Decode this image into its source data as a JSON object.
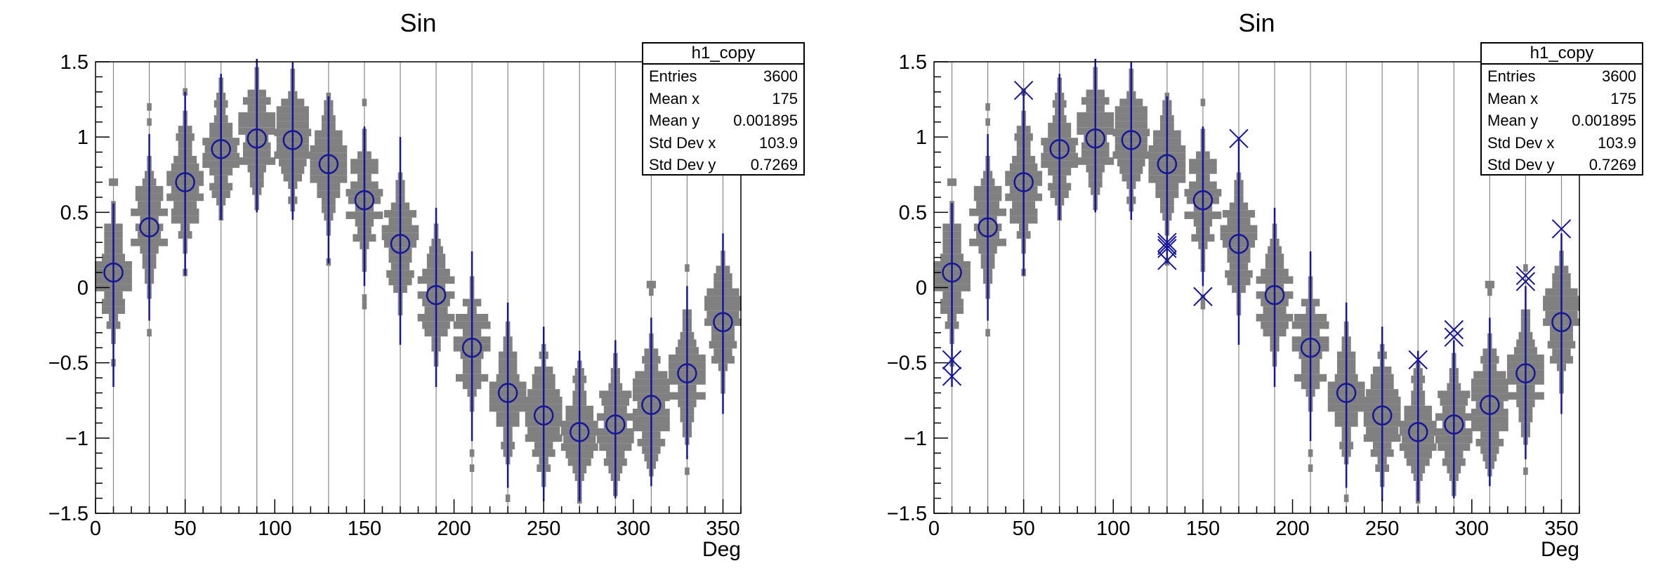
{
  "chart_data": {
    "type": "violin",
    "title": "Sin",
    "xlabel": "Deg",
    "ylabel": "",
    "xlim": [
      0,
      360
    ],
    "ylim": [
      -1.5,
      1.5
    ],
    "grid": "vertical gray line at each bin center",
    "legend_position": "none",
    "bin_width_deg": 20,
    "x_ticks": {
      "values": [
        0,
        50,
        100,
        150,
        200,
        250,
        300,
        350
      ],
      "labels": [
        "0",
        "50",
        "100",
        "150",
        "200",
        "250",
        "300",
        "350"
      ],
      "minor_step": 10
    },
    "y_ticks": {
      "values": [
        -1.5,
        -1,
        -0.5,
        0,
        0.5,
        1,
        1.5
      ],
      "labels": [
        "−1.5",
        "−1",
        "−0.5",
        "0",
        "0.5",
        "1",
        "1.5"
      ],
      "minor_step": 0.1
    },
    "bins": [
      {
        "deg": 10,
        "mean": 0.1,
        "whisker_lo": -0.66,
        "whisker_hi": 0.56
      },
      {
        "deg": 30,
        "mean": 0.4,
        "whisker_lo": -0.22,
        "whisker_hi": 1.02
      },
      {
        "deg": 50,
        "mean": 0.7,
        "whisker_lo": 0.08,
        "whisker_hi": 1.3
      },
      {
        "deg": 70,
        "mean": 0.92,
        "whisker_lo": 0.45,
        "whisker_hi": 1.42
      },
      {
        "deg": 90,
        "mean": 0.99,
        "whisker_lo": 0.5,
        "whisker_hi": 1.52
      },
      {
        "deg": 110,
        "mean": 0.98,
        "whisker_lo": 0.45,
        "whisker_hi": 1.5
      },
      {
        "deg": 130,
        "mean": 0.82,
        "whisker_lo": 0.16,
        "whisker_hi": 1.27
      },
      {
        "deg": 150,
        "mean": 0.58,
        "whisker_lo": 0.01,
        "whisker_hi": 1.07
      },
      {
        "deg": 170,
        "mean": 0.29,
        "whisker_lo": -0.38,
        "whisker_hi": 1.0
      },
      {
        "deg": 190,
        "mean": -0.05,
        "whisker_lo": -0.66,
        "whisker_hi": 0.53
      },
      {
        "deg": 210,
        "mean": -0.4,
        "whisker_lo": -1.02,
        "whisker_hi": 0.24
      },
      {
        "deg": 230,
        "mean": -0.7,
        "whisker_lo": -1.33,
        "whisker_hi": -0.1
      },
      {
        "deg": 250,
        "mean": -0.85,
        "whisker_lo": -1.42,
        "whisker_hi": -0.26
      },
      {
        "deg": 270,
        "mean": -0.96,
        "whisker_lo": -1.42,
        "whisker_hi": -0.42
      },
      {
        "deg": 290,
        "mean": -0.91,
        "whisker_lo": -1.4,
        "whisker_hi": -0.35
      },
      {
        "deg": 310,
        "mean": -0.78,
        "whisker_lo": -1.32,
        "whisker_hi": -0.2
      },
      {
        "deg": 330,
        "mean": -0.57,
        "whisker_lo": -1.14,
        "whisker_hi": 0.01
      },
      {
        "deg": 350,
        "mean": -0.23,
        "whisker_lo": -0.84,
        "whisker_hi": 0.36
      }
    ],
    "panels": [
      {
        "id": "left",
        "title": "Sin",
        "has_outlier_markers": false,
        "outliers": []
      },
      {
        "id": "right",
        "title": "Sin",
        "has_outlier_markers": true,
        "outliers": [
          {
            "deg": 10,
            "y": -0.48
          },
          {
            "deg": 10,
            "y": -0.59
          },
          {
            "deg": 50,
            "y": 1.31
          },
          {
            "deg": 130,
            "y": 0.3
          },
          {
            "deg": 130,
            "y": 0.28
          },
          {
            "deg": 130,
            "y": 0.26
          },
          {
            "deg": 130,
            "y": 0.18
          },
          {
            "deg": 150,
            "y": -0.06
          },
          {
            "deg": 170,
            "y": 0.99
          },
          {
            "deg": 270,
            "y": -0.48
          },
          {
            "deg": 290,
            "y": -0.28
          },
          {
            "deg": 290,
            "y": -0.33
          },
          {
            "deg": 330,
            "y": 0.08
          },
          {
            "deg": 330,
            "y": 0.04
          },
          {
            "deg": 350,
            "y": 0.39
          }
        ]
      }
    ],
    "stats_box": {
      "header": "h1_copy",
      "rows": [
        {
          "label": "Entries",
          "value": "3600"
        },
        {
          "label": "Mean x",
          "value": "175"
        },
        {
          "label": "Mean y",
          "value": "0.001895"
        },
        {
          "label": "Std Dev x",
          "value": "103.9"
        },
        {
          "label": "Std Dev y",
          "value": "0.7269"
        }
      ]
    },
    "colors": {
      "violin_fill": "#808080",
      "marker_line": "#16169a",
      "grid_line": "#878787",
      "frame": "#000000",
      "text": "#000000",
      "stats_background": "#ffffff"
    }
  }
}
